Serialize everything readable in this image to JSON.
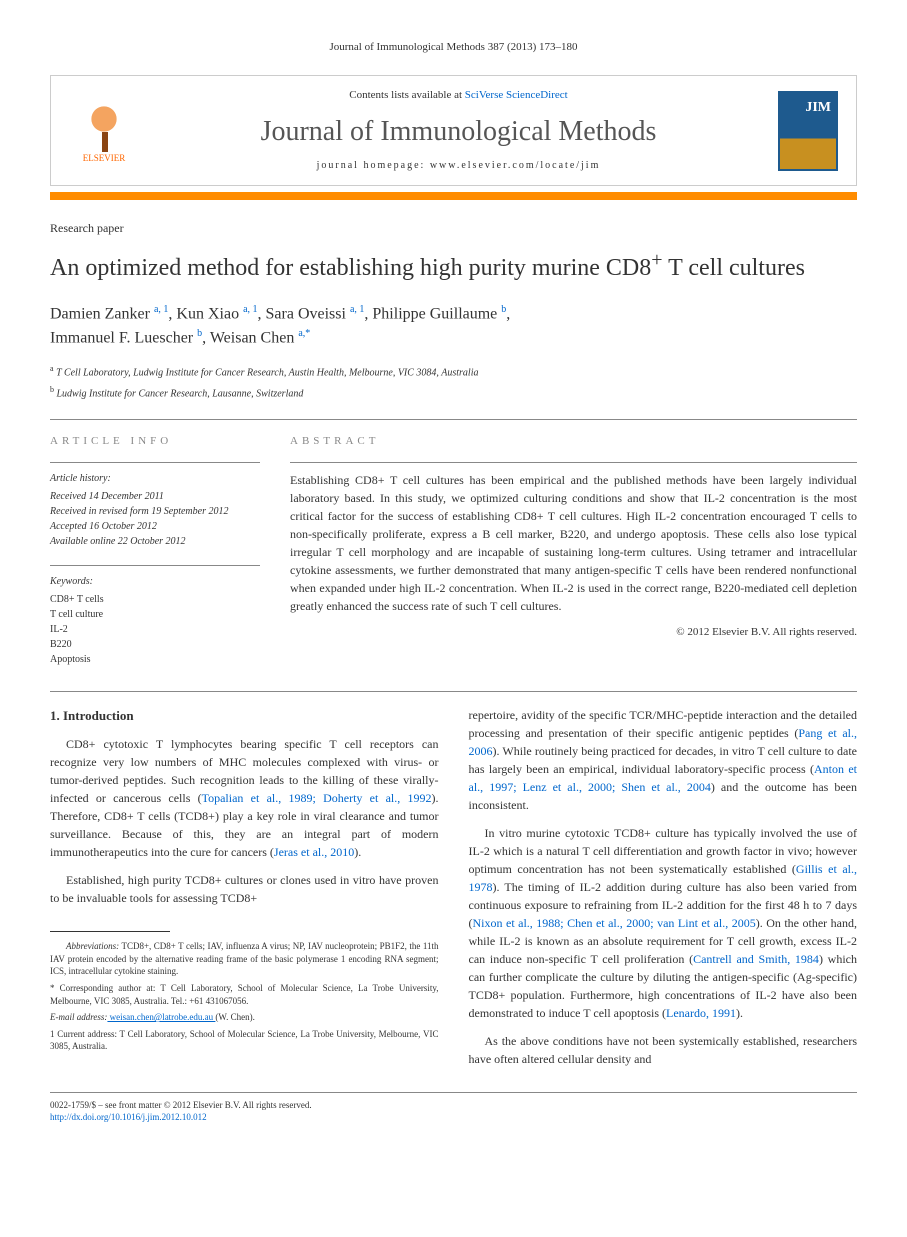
{
  "header": {
    "citation": "Journal of Immunological Methods 387 (2013) 173–180",
    "contents_prefix": "Contents lists available at ",
    "contents_link": "SciVerse ScienceDirect",
    "journal_name": "Journal of Immunological Methods",
    "homepage_prefix": "journal homepage: ",
    "homepage_url": "www.elsevier.com/locate/jim",
    "elsevier_label": "ELSEVIER"
  },
  "paper": {
    "type": "Research paper",
    "title_pre": "An optimized method for establishing high purity murine CD8",
    "title_sup": "+",
    "title_post": " T cell cultures"
  },
  "authors": {
    "a1": "Damien Zanker",
    "a1_sup": "a, 1",
    "a2": "Kun Xiao",
    "a2_sup": "a, 1",
    "a3": "Sara Oveissi",
    "a3_sup": "a, 1",
    "a4": "Philippe Guillaume",
    "a4_sup": "b",
    "a5": "Immanuel F. Luescher",
    "a5_sup": "b",
    "a6": "Weisan Chen",
    "a6_sup": "a,",
    "a6_star": "*"
  },
  "affiliations": {
    "a": "T Cell Laboratory, Ludwig Institute for Cancer Research, Austin Health, Melbourne, VIC 3084, Australia",
    "b": "Ludwig Institute for Cancer Research, Lausanne, Switzerland"
  },
  "article_info": {
    "label": "ARTICLE INFO",
    "history_label": "Article history:",
    "received": "Received 14 December 2011",
    "revised": "Received in revised form 19 September 2012",
    "accepted": "Accepted 16 October 2012",
    "online": "Available online 22 October 2012",
    "keywords_label": "Keywords:",
    "kw1": "CD8+ T cells",
    "kw2": "T cell culture",
    "kw3": "IL-2",
    "kw4": "B220",
    "kw5": "Apoptosis"
  },
  "abstract": {
    "label": "ABSTRACT",
    "text": "Establishing CD8+ T cell cultures has been empirical and the published methods have been largely individual laboratory based. In this study, we optimized culturing conditions and show that IL-2 concentration is the most critical factor for the success of establishing CD8+ T cell cultures. High IL-2 concentration encouraged T cells to non-specifically proliferate, express a B cell marker, B220, and undergo apoptosis. These cells also lose typical irregular T cell morphology and are incapable of sustaining long-term cultures. Using tetramer and intracellular cytokine assessments, we further demonstrated that many antigen-specific T cells have been rendered nonfunctional when expanded under high IL-2 concentration. When IL-2 is used in the correct range, B220-mediated cell depletion greatly enhanced the success rate of such T cell cultures.",
    "copyright": "© 2012 Elsevier B.V. All rights reserved."
  },
  "intro": {
    "heading": "1. Introduction",
    "p1_a": "CD8+ cytotoxic T lymphocytes bearing specific T cell receptors can recognize very low numbers of MHC molecules complexed with virus- or tumor-derived peptides. Such recognition leads to the killing of these virally-infected or cancerous cells (",
    "p1_cite1": "Topalian et al., 1989; Doherty et al., 1992",
    "p1_b": "). Therefore, CD8+ T cells (TCD8+) play a key role in viral clearance and tumor surveillance. Because of this, they are an integral part of modern immunotherapeutics into the cure for cancers (",
    "p1_cite2": "Jeras et al., 2010",
    "p1_c": ").",
    "p2_a": "Established, high purity TCD8+ cultures or clones used in vitro have proven to be invaluable tools for assessing TCD8+",
    "p3_a": "repertoire, avidity of the specific TCR/MHC-peptide interaction and the detailed processing and presentation of their specific antigenic peptides (",
    "p3_cite1": "Pang et al., 2006",
    "p3_b": "). While routinely being practiced for decades, in vitro T cell culture to date has largely been an empirical, individual laboratory-specific process (",
    "p3_cite2": "Anton et al., 1997; Lenz et al., 2000; Shen et al., 2004",
    "p3_c": ") and the outcome has been inconsistent.",
    "p4_a": "In vitro murine cytotoxic TCD8+ culture has typically involved the use of IL-2 which is a natural T cell differentiation and growth factor in vivo; however optimum concentration has not been systematically established (",
    "p4_cite1": "Gillis et al., 1978",
    "p4_b": "). The timing of IL-2 addition during culture has also been varied from continuous exposure to refraining from IL-2 addition for the first 48 h to 7 days (",
    "p4_cite2": "Nixon et al., 1988; Chen et al., 2000; van Lint et al., 2005",
    "p4_c": "). On the other hand, while IL-2 is known as an absolute requirement for T cell growth, excess IL-2 can induce non-specific T cell proliferation (",
    "p4_cite3": "Cantrell and Smith, 1984",
    "p4_d": ") which can further complicate the culture by diluting the antigen-specific (Ag-specific) TCD8+ population. Furthermore, high concentrations of IL-2 have also been demonstrated to induce T cell apoptosis (",
    "p4_cite4": "Lenardo, 1991",
    "p4_e": ").",
    "p5": "As the above conditions have not been systemically established, researchers have often altered cellular density and"
  },
  "footnotes": {
    "abbrev_label": "Abbreviations:",
    "abbrev_text": " TCD8+, CD8+ T cells; IAV, influenza A virus; NP, IAV nucleoprotein; PB1F2, the 11th IAV protein encoded by the alternative reading frame of the basic polymerase 1 encoding RNA segment; ICS, intracellular cytokine staining.",
    "corr_label": "* Corresponding author at: ",
    "corr_text": "T Cell Laboratory, School of Molecular Science, La Trobe University, Melbourne, VIC 3085, Australia. Tel.: +61 431067056.",
    "email_label": "E-mail address:",
    "email": " weisan.chen@latrobe.edu.au ",
    "email_suffix": "(W. Chen).",
    "curr_label": "1 Current address: ",
    "curr_text": "T Cell Laboratory, School of Molecular Science, La Trobe University, Melbourne, VIC 3085, Australia."
  },
  "bottom": {
    "line1": "0022-1759/$ – see front matter © 2012 Elsevier B.V. All rights reserved.",
    "doi": "http://dx.doi.org/10.1016/j.jim.2012.10.012"
  },
  "colors": {
    "link": "#0066cc",
    "orange_bar": "#ff8c00",
    "text": "#333333",
    "label_gray": "#888888"
  }
}
